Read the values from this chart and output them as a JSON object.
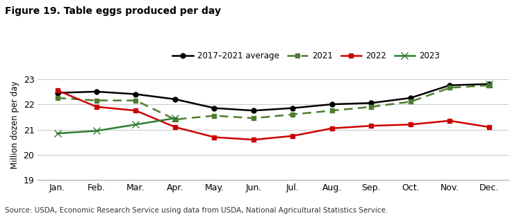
{
  "title": "Figure 19. Table eggs produced per day",
  "ylabel": "Million dozen per day",
  "source": "Source: USDA, Economic Research Service using data from USDA, National Agricultural Statistics Service.",
  "months": [
    "Jan.",
    "Feb.",
    "Mar.",
    "Apr.",
    "May.",
    "Jun.",
    "Jul.",
    "Aug.",
    "Sep.",
    "Oct.",
    "Nov.",
    "Dec."
  ],
  "series": {
    "2017-2021 average": {
      "values": [
        22.45,
        22.5,
        22.4,
        22.2,
        21.85,
        21.75,
        21.85,
        22.0,
        22.05,
        22.25,
        22.75,
        22.8
      ],
      "color": "#000000",
      "marker": "o",
      "linewidth": 1.8,
      "markersize": 5,
      "label": "2017–2021 average",
      "dashes": null
    },
    "2021": {
      "values": [
        22.25,
        22.15,
        22.15,
        21.4,
        21.55,
        21.45,
        21.6,
        21.75,
        21.9,
        22.1,
        22.65,
        22.75
      ],
      "color": "#4d7c2e",
      "marker": "s",
      "linewidth": 1.8,
      "markersize": 5,
      "label": "2021",
      "dashes": [
        5,
        3
      ]
    },
    "2022": {
      "values": [
        22.55,
        21.9,
        21.75,
        21.1,
        20.7,
        20.6,
        20.75,
        21.05,
        21.15,
        21.2,
        21.35,
        21.1
      ],
      "color": "#cc0000",
      "marker": "s",
      "linewidth": 1.8,
      "markersize": 5,
      "label": "2022",
      "dashes": null
    },
    "2023": {
      "values": [
        20.85,
        20.95,
        21.2,
        21.45,
        null,
        null,
        null,
        null,
        null,
        null,
        null,
        22.8
      ],
      "color": "#2e7d32",
      "marker": "x",
      "linewidth": 1.8,
      "markersize": 7,
      "label": "2023",
      "dashes": null
    }
  },
  "series_order": [
    "2017-2021 average",
    "2021",
    "2022",
    "2023"
  ],
  "ylim": [
    19,
    23.4
  ],
  "yticks": [
    19,
    20,
    21,
    22,
    23
  ],
  "background_color": "#ffffff",
  "grid_color": "#cccccc"
}
